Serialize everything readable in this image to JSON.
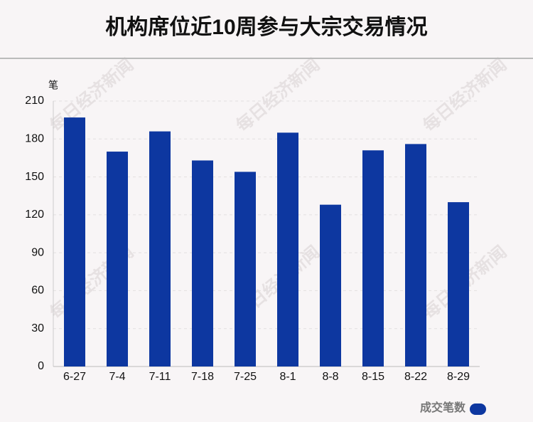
{
  "chart_data": {
    "type": "bar",
    "title": "机构席位近10周参与大宗交易情况",
    "y_label": "笔",
    "categories": [
      "6-27",
      "7-4",
      "7-11",
      "7-18",
      "7-25",
      "8-1",
      "8-8",
      "8-15",
      "8-22",
      "8-29"
    ],
    "series": [
      {
        "name": "成交笔数",
        "color": "#0d37a0",
        "values": [
          197,
          170,
          186,
          163,
          154,
          185,
          128,
          171,
          176,
          130
        ]
      }
    ],
    "ylim": [
      0,
      210
    ],
    "yticks": [
      0,
      30,
      60,
      90,
      120,
      150,
      180,
      210
    ],
    "grid": true,
    "legend": "bottom-right",
    "watermark": "每日经济新闻"
  }
}
